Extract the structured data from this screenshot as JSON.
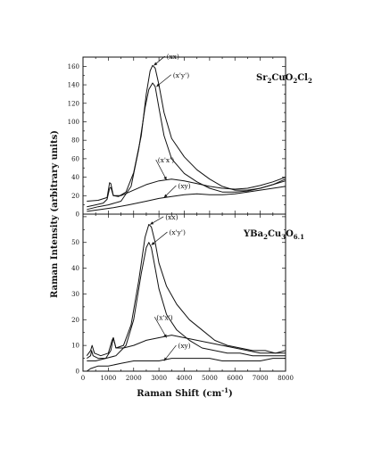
{
  "chart_data": [
    {
      "type": "line",
      "panel": "top",
      "compound_label": {
        "parts": [
          [
            "Sr",
            ""
          ],
          [
            "2",
            "sub"
          ],
          [
            "CuO",
            ""
          ],
          [
            "2",
            "sub"
          ],
          [
            "Cl",
            ""
          ],
          [
            "2",
            "sub"
          ]
        ]
      },
      "xlim": [
        0,
        8000
      ],
      "ylim": [
        0,
        170
      ],
      "yticks": [
        0,
        20,
        40,
        60,
        80,
        100,
        120,
        140,
        160
      ],
      "series": [
        {
          "name": "(xx)",
          "points": [
            [
              150,
              8
            ],
            [
              500,
              10
            ],
            [
              800,
              12
            ],
            [
              950,
              16
            ],
            [
              1050,
              28
            ],
            [
              1100,
              29
            ],
            [
              1200,
              20
            ],
            [
              1400,
              19
            ],
            [
              1700,
              24
            ],
            [
              2000,
              45
            ],
            [
              2300,
              85
            ],
            [
              2500,
              130
            ],
            [
              2650,
              155
            ],
            [
              2750,
              161
            ],
            [
              2850,
              158
            ],
            [
              3000,
              140
            ],
            [
              3200,
              110
            ],
            [
              3500,
              82
            ],
            [
              4000,
              62
            ],
            [
              4500,
              48
            ],
            [
              5000,
              38
            ],
            [
              5500,
              30
            ],
            [
              6000,
              26
            ],
            [
              6500,
              26
            ],
            [
              7000,
              28
            ],
            [
              7500,
              32
            ],
            [
              8000,
              36
            ]
          ]
        },
        {
          "name": "(x'y')",
          "points": [
            [
              150,
              5
            ],
            [
              600,
              8
            ],
            [
              1000,
              10
            ],
            [
              1500,
              14
            ],
            [
              1900,
              30
            ],
            [
              2200,
              70
            ],
            [
              2450,
              115
            ],
            [
              2600,
              135
            ],
            [
              2750,
              142
            ],
            [
              2850,
              138
            ],
            [
              3000,
              115
            ],
            [
              3200,
              85
            ],
            [
              3500,
              60
            ],
            [
              4000,
              44
            ],
            [
              4500,
              35
            ],
            [
              5000,
              28
            ],
            [
              5500,
              24
            ],
            [
              6000,
              24
            ],
            [
              6500,
              25
            ],
            [
              7000,
              28
            ],
            [
              7500,
              32
            ],
            [
              8000,
              38
            ]
          ]
        },
        {
          "name": "(x'x')",
          "points": [
            [
              150,
              14
            ],
            [
              600,
              15
            ],
            [
              950,
              18
            ],
            [
              1050,
              34
            ],
            [
              1100,
              33
            ],
            [
              1200,
              20
            ],
            [
              1500,
              20
            ],
            [
              2000,
              26
            ],
            [
              2500,
              32
            ],
            [
              3000,
              36
            ],
            [
              3500,
              38
            ],
            [
              4000,
              36
            ],
            [
              4500,
              33
            ],
            [
              5000,
              30
            ],
            [
              5500,
              28
            ],
            [
              6000,
              27
            ],
            [
              6500,
              28
            ],
            [
              7000,
              31
            ],
            [
              7500,
              35
            ],
            [
              8000,
              40
            ]
          ]
        },
        {
          "name": "(xy)",
          "points": [
            [
              150,
              3
            ],
            [
              700,
              5
            ],
            [
              1200,
              7
            ],
            [
              1800,
              10
            ],
            [
              2500,
              14
            ],
            [
              3000,
              17
            ],
            [
              3500,
              19
            ],
            [
              4000,
              21
            ],
            [
              4500,
              22
            ],
            [
              5000,
              21
            ],
            [
              5500,
              21
            ],
            [
              6000,
              22
            ],
            [
              6500,
              24
            ],
            [
              7000,
              26
            ],
            [
              7500,
              28
            ],
            [
              8000,
              30
            ]
          ]
        }
      ],
      "annotations": [
        {
          "text": "(xx)",
          "at": [
            2800,
            161
          ],
          "label_at": [
            3300,
            168
          ]
        },
        {
          "text": "(x'y')",
          "at": [
            2900,
            138
          ],
          "label_at": [
            3550,
            148
          ]
        },
        {
          "text": "(x'x')",
          "at": [
            3300,
            37
          ],
          "label_at": [
            2950,
            56
          ]
        },
        {
          "text": "(xy)",
          "at": [
            3200,
            18
          ],
          "label_at": [
            3750,
            28
          ]
        }
      ]
    },
    {
      "type": "line",
      "panel": "bottom",
      "compound_label": {
        "parts": [
          [
            "YBa",
            ""
          ],
          [
            "2",
            "sub"
          ],
          [
            "Cu",
            ""
          ],
          [
            "3",
            "sub"
          ],
          [
            "O",
            ""
          ],
          [
            "6.1",
            "sub"
          ]
        ]
      },
      "xlim": [
        0,
        8000
      ],
      "ylim": [
        0,
        61
      ],
      "yticks": [
        0,
        10,
        20,
        30,
        40,
        50
      ],
      "xticks": [
        0,
        1000,
        2000,
        3000,
        4000,
        5000,
        6000,
        7000,
        8000
      ],
      "series": [
        {
          "name": "(xx)",
          "points": [
            [
              150,
              5
            ],
            [
              300,
              6
            ],
            [
              340,
              8
            ],
            [
              400,
              6
            ],
            [
              600,
              5
            ],
            [
              900,
              5
            ],
            [
              1100,
              8
            ],
            [
              1200,
              13
            ],
            [
              1300,
              9
            ],
            [
              1600,
              10
            ],
            [
              1900,
              18
            ],
            [
              2200,
              35
            ],
            [
              2450,
              52
            ],
            [
              2600,
              57
            ],
            [
              2700,
              56
            ],
            [
              2850,
              50
            ],
            [
              3000,
              42
            ],
            [
              3300,
              33
            ],
            [
              3700,
              26
            ],
            [
              4200,
              20
            ],
            [
              4700,
              16
            ],
            [
              5200,
              12
            ],
            [
              5700,
              10
            ],
            [
              6200,
              9
            ],
            [
              6700,
              8
            ],
            [
              7200,
              8
            ],
            [
              7600,
              7
            ],
            [
              8000,
              8
            ]
          ]
        },
        {
          "name": "(x'y')",
          "points": [
            [
              150,
              4
            ],
            [
              500,
              4
            ],
            [
              900,
              5
            ],
            [
              1300,
              6
            ],
            [
              1700,
              10
            ],
            [
              2000,
              20
            ],
            [
              2300,
              38
            ],
            [
              2500,
              48
            ],
            [
              2600,
              50
            ],
            [
              2700,
              48
            ],
            [
              2850,
              40
            ],
            [
              3000,
              32
            ],
            [
              3300,
              22
            ],
            [
              3700,
              16
            ],
            [
              4200,
              12
            ],
            [
              4700,
              9
            ],
            [
              5200,
              8
            ],
            [
              5700,
              7
            ],
            [
              6200,
              7
            ],
            [
              6700,
              6
            ],
            [
              7200,
              6
            ],
            [
              7600,
              6
            ],
            [
              8000,
              6
            ]
          ]
        },
        {
          "name": "(x'x')",
          "points": [
            [
              150,
              6
            ],
            [
              300,
              8
            ],
            [
              360,
              10
            ],
            [
              450,
              7
            ],
            [
              700,
              6
            ],
            [
              1000,
              7
            ],
            [
              1150,
              12
            ],
            [
              1200,
              13
            ],
            [
              1300,
              9
            ],
            [
              1600,
              9
            ],
            [
              2000,
              10
            ],
            [
              2500,
              12
            ],
            [
              3000,
              13
            ],
            [
              3500,
              14
            ],
            [
              4000,
              13
            ],
            [
              4500,
              12
            ],
            [
              5000,
              11
            ],
            [
              5500,
              10
            ],
            [
              6000,
              9
            ],
            [
              6500,
              8
            ],
            [
              7000,
              7
            ],
            [
              7500,
              7
            ],
            [
              8000,
              7
            ]
          ]
        },
        {
          "name": "(xy)",
          "points": [
            [
              150,
              0
            ],
            [
              300,
              1
            ],
            [
              600,
              2
            ],
            [
              1000,
              2
            ],
            [
              1500,
              3
            ],
            [
              2000,
              4
            ],
            [
              2500,
              4
            ],
            [
              3000,
              4
            ],
            [
              3500,
              5
            ],
            [
              4000,
              5
            ],
            [
              4500,
              5
            ],
            [
              5000,
              5
            ],
            [
              5500,
              4
            ],
            [
              6000,
              4
            ],
            [
              6500,
              4
            ],
            [
              7000,
              4
            ],
            [
              7500,
              5
            ],
            [
              8000,
              5
            ]
          ]
        }
      ],
      "annotations": [
        {
          "text": "(xx)",
          "at": [
            2650,
            57
          ],
          "label_at": [
            3250,
            59
          ]
        },
        {
          "text": "(x'y')",
          "at": [
            2700,
            49
          ],
          "label_at": [
            3400,
            53
          ]
        },
        {
          "text": "(x'x')",
          "at": [
            3300,
            13
          ],
          "label_at": [
            2900,
            20
          ]
        },
        {
          "text": "(xy)",
          "at": [
            3200,
            4
          ],
          "label_at": [
            3750,
            9
          ]
        }
      ]
    }
  ],
  "axes": {
    "xlabel": "Raman Shift (cm",
    "xlabel_sup": "-1",
    "xlabel_end": ")",
    "ylabel": "Raman Intensity (arbitrary units)"
  }
}
